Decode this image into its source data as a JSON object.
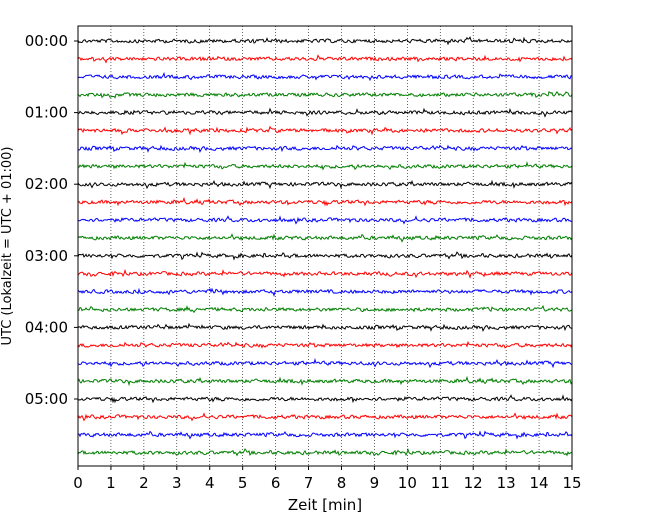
{
  "chart_data": {
    "type": "line",
    "title": "",
    "xlabel": "Zeit  [min]",
    "ylabel": "UTC (Lokalzeit = UTC + 01:00)",
    "xlim": [
      0,
      15
    ],
    "xticks": [
      "0",
      "1",
      "2",
      "3",
      "4",
      "5",
      "6",
      "7",
      "8",
      "9",
      "10",
      "11",
      "12",
      "13",
      "14",
      "15"
    ],
    "yticks": [
      "00:00",
      "01:00",
      "02:00",
      "03:00",
      "04:00",
      "05:00"
    ],
    "grid": "vertical dotted",
    "trace_count": 24,
    "trace_interval_min": 15,
    "trace_colors": [
      "#000000",
      "#ff0000",
      "#0000ff",
      "#007f00"
    ]
  }
}
